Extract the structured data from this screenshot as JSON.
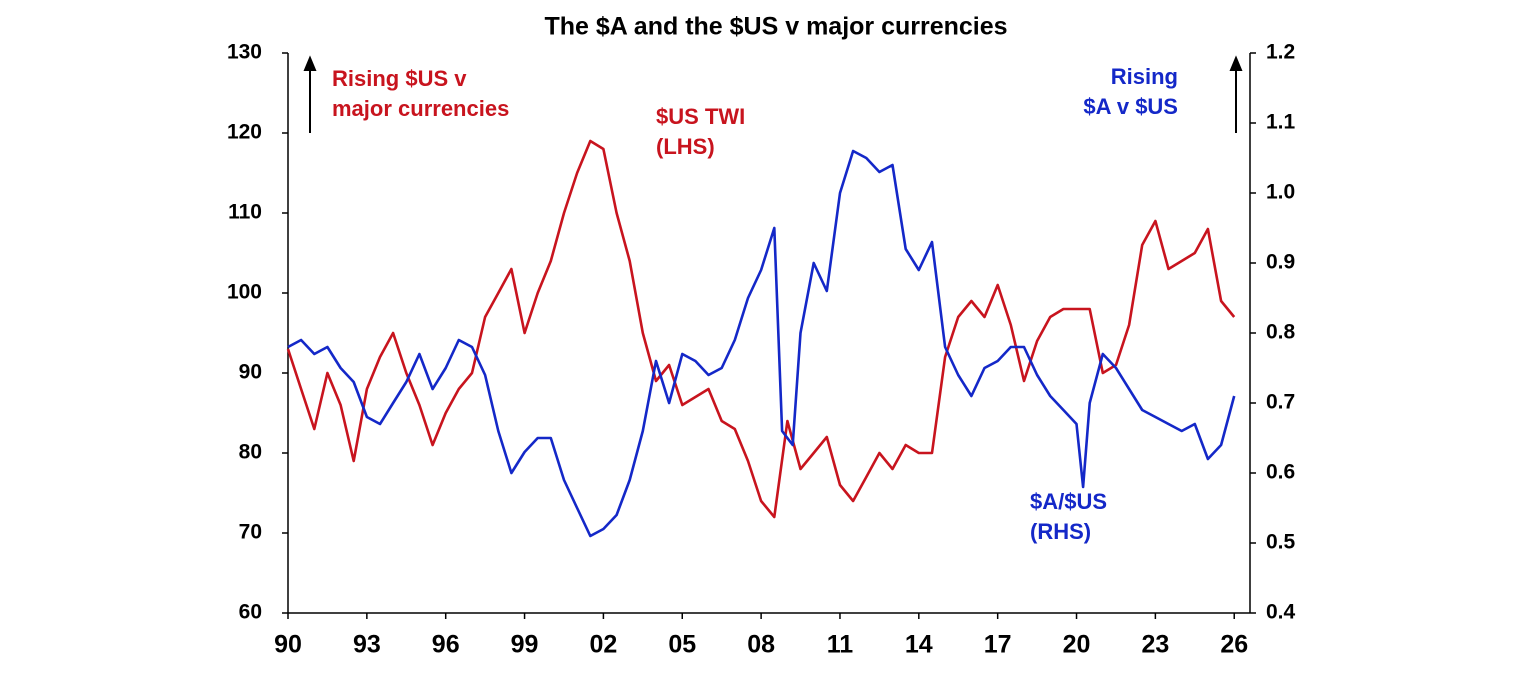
{
  "chart_data": {
    "type": "line",
    "title": "The $A and the $US v major currencies",
    "xlim": [
      1990,
      2026.6
    ],
    "xticks": [
      {
        "value": 1990,
        "label": "90"
      },
      {
        "value": 1993,
        "label": "93"
      },
      {
        "value": 1996,
        "label": "96"
      },
      {
        "value": 1999,
        "label": "99"
      },
      {
        "value": 2002,
        "label": "02"
      },
      {
        "value": 2005,
        "label": "05"
      },
      {
        "value": 2008,
        "label": "08"
      },
      {
        "value": 2011,
        "label": "11"
      },
      {
        "value": 2014,
        "label": "14"
      },
      {
        "value": 2017,
        "label": "17"
      },
      {
        "value": 2020,
        "label": "20"
      },
      {
        "value": 2023,
        "label": "23"
      },
      {
        "value": 2026,
        "label": "26"
      }
    ],
    "ylim": [
      60,
      130
    ],
    "yticks": [
      60,
      70,
      80,
      90,
      100,
      110,
      120,
      130
    ],
    "y2lim": [
      0.4,
      1.2
    ],
    "y2ticks": [
      0.4,
      0.5,
      0.6,
      0.7,
      0.8,
      0.9,
      {
        "value": 1,
        "label": "1.0"
      },
      1.1,
      1.2
    ],
    "series": [
      {
        "name": "$US TWI",
        "color": "#c8141e",
        "x": [
          1990,
          1990.5,
          1991,
          1991.5,
          1992,
          1992.5,
          1993,
          1993.5,
          1994,
          1994.5,
          1995,
          1995.5,
          1996,
          1996.5,
          1997,
          1997.5,
          1998,
          1998.5,
          1999,
          1999.5,
          2000,
          2000.5,
          2001,
          2001.5,
          2002,
          2002.5,
          2003,
          2003.5,
          2004,
          2004.5,
          2005,
          2005.5,
          2006,
          2006.5,
          2007,
          2007.5,
          2008,
          2008.5,
          2009,
          2009.5,
          2010,
          2010.5,
          2011,
          2011.5,
          2012,
          2012.5,
          2013,
          2013.5,
          2014,
          2014.5,
          2015,
          2015.5,
          2016,
          2016.5,
          2017,
          2017.5,
          2018,
          2018.5,
          2019,
          2019.5,
          2020,
          2020.5,
          2021,
          2021.5,
          2022,
          2022.5,
          2023,
          2023.5,
          2024,
          2024.5,
          2025,
          2025.5,
          2026
        ],
        "values": [
          93,
          88,
          83,
          90,
          86,
          79,
          88,
          92,
          95,
          90,
          86,
          81,
          85,
          88,
          90,
          97,
          100,
          103,
          95,
          100,
          104,
          110,
          115,
          119,
          118,
          110,
          104,
          95,
          89,
          91,
          86,
          87,
          88,
          84,
          83,
          79,
          74,
          72,
          84,
          78,
          80,
          82,
          76,
          74,
          77,
          80,
          78,
          81,
          80,
          80,
          92,
          97,
          99,
          97,
          101,
          96,
          89,
          94,
          97,
          98,
          98,
          98,
          90,
          91,
          96,
          106,
          109,
          103,
          104,
          105,
          108,
          99,
          97
        ]
      },
      {
        "name": "$A/$US",
        "color": "#1428c8",
        "axis": "y2",
        "x": [
          1990,
          1990.5,
          1991,
          1991.5,
          1992,
          1992.5,
          1993,
          1993.5,
          1994,
          1994.5,
          1995,
          1995.5,
          1996,
          1996.5,
          1997,
          1997.5,
          1998,
          1998.5,
          1999,
          1999.5,
          2000,
          2000.5,
          2001,
          2001.5,
          2002,
          2002.5,
          2003,
          2003.5,
          2004,
          2004.5,
          2005,
          2005.5,
          2006,
          2006.5,
          2007,
          2007.5,
          2008,
          2008.5,
          2008.8,
          2009.2,
          2009.5,
          2010,
          2010.5,
          2011,
          2011.5,
          2012,
          2012.5,
          2013,
          2013.5,
          2014,
          2014.5,
          2015,
          2015.5,
          2016,
          2016.5,
          2017,
          2017.5,
          2018,
          2018.5,
          2019,
          2019.5,
          2020,
          2020.25,
          2020.5,
          2021,
          2021.5,
          2022,
          2022.5,
          2023,
          2023.5,
          2024,
          2024.5,
          2025,
          2025.5,
          2026
        ],
        "values": [
          0.78,
          0.79,
          0.77,
          0.78,
          0.75,
          0.73,
          0.68,
          0.67,
          0.7,
          0.73,
          0.77,
          0.72,
          0.75,
          0.79,
          0.78,
          0.74,
          0.66,
          0.6,
          0.63,
          0.65,
          0.65,
          0.59,
          0.55,
          0.51,
          0.52,
          0.54,
          0.59,
          0.66,
          0.76,
          0.7,
          0.77,
          0.76,
          0.74,
          0.75,
          0.79,
          0.85,
          0.89,
          0.95,
          0.66,
          0.64,
          0.8,
          0.9,
          0.86,
          1.0,
          1.06,
          1.05,
          1.03,
          1.04,
          0.92,
          0.89,
          0.93,
          0.78,
          0.74,
          0.71,
          0.75,
          0.76,
          0.78,
          0.78,
          0.74,
          0.71,
          0.69,
          0.67,
          0.58,
          0.7,
          0.77,
          0.75,
          0.72,
          0.69,
          0.68,
          0.67,
          0.66,
          0.67,
          0.62,
          0.64,
          0.71
        ]
      }
    ],
    "annotations": [
      {
        "lines": [
          "Rising $US v",
          "major currencies"
        ],
        "color": "#c8141e"
      },
      {
        "lines": [
          "$US TWI",
          "(LHS)"
        ],
        "color": "#c8141e"
      },
      {
        "lines": [
          "Rising",
          "$A v $US"
        ],
        "color": "#1428c8"
      },
      {
        "lines": [
          "$A/$US",
          "(RHS)"
        ],
        "color": "#1428c8"
      }
    ]
  }
}
